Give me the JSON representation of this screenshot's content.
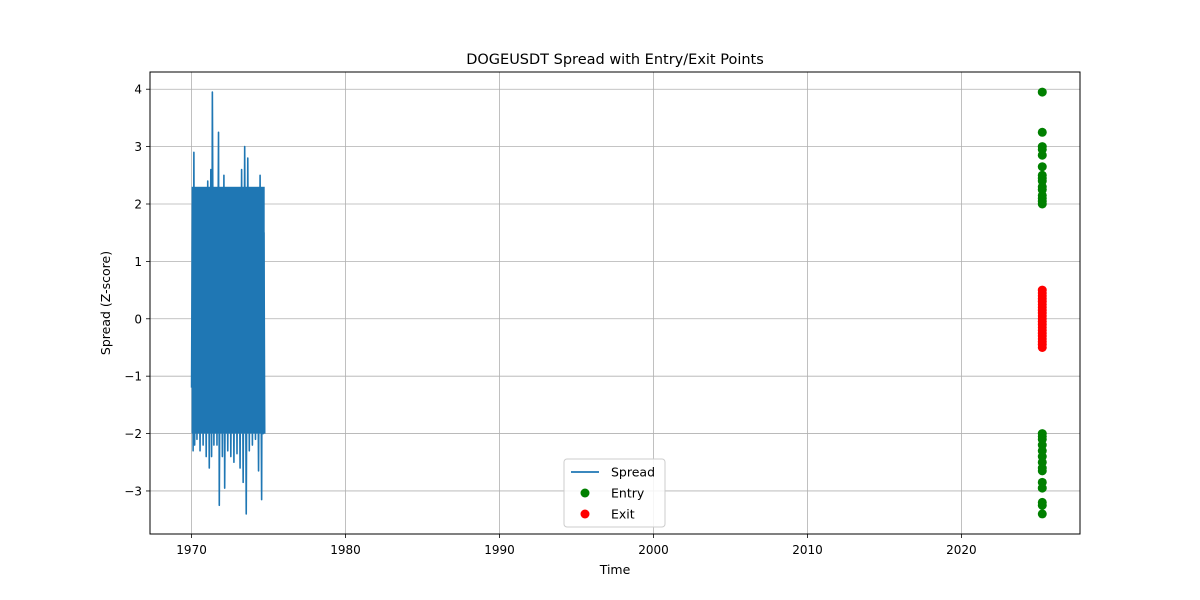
{
  "chart_data": {
    "type": "line",
    "title": "DOGEUSDT Spread with Entry/Exit Points",
    "xlabel": "Time",
    "ylabel": "Spread (Z-score)",
    "xlim": [
      1967.3,
      2027.7
    ],
    "ylim": [
      -3.75,
      4.3
    ],
    "x_ticks": [
      1970,
      1980,
      1990,
      2000,
      2010,
      2020
    ],
    "y_ticks": [
      4,
      3,
      2,
      1,
      0,
      -1,
      -2,
      -3
    ],
    "x_tick_labels": [
      "1970",
      "1980",
      "1990",
      "2000",
      "2010",
      "2020"
    ],
    "y_tick_labels": [
      "4",
      "3",
      "2",
      "1",
      "0",
      "−1",
      "−2",
      "−3"
    ],
    "grid": true,
    "legend_position": "lower center",
    "colors": {
      "spread": "#1f77b4",
      "entry": "#008000",
      "exit": "#ff0000",
      "grid": "#b0b0b0"
    },
    "series": [
      {
        "name": "Spread",
        "kind": "line",
        "x_range": [
          1970.0,
          1974.75
        ],
        "points": [
          [
            1970.0,
            -1.2
          ],
          [
            1970.05,
            2.0
          ],
          [
            1970.1,
            -2.3
          ],
          [
            1970.15,
            2.9
          ],
          [
            1970.2,
            -2.2
          ],
          [
            1970.28,
            1.6
          ],
          [
            1970.35,
            -2.1
          ],
          [
            1970.45,
            1.9
          ],
          [
            1970.55,
            -2.3
          ],
          [
            1970.65,
            1.7
          ],
          [
            1970.75,
            -2.2
          ],
          [
            1970.85,
            2.0
          ],
          [
            1970.95,
            -2.4
          ],
          [
            1971.05,
            2.4
          ],
          [
            1971.15,
            -2.6
          ],
          [
            1971.25,
            2.6
          ],
          [
            1971.3,
            -2.4
          ],
          [
            1971.35,
            3.95
          ],
          [
            1971.45,
            -2.2
          ],
          [
            1971.55,
            2.2
          ],
          [
            1971.65,
            -2.2
          ],
          [
            1971.75,
            3.25
          ],
          [
            1971.8,
            -3.25
          ],
          [
            1971.9,
            2.2
          ],
          [
            1972.0,
            -2.4
          ],
          [
            1972.1,
            2.5
          ],
          [
            1972.15,
            -2.95
          ],
          [
            1972.25,
            2.0
          ],
          [
            1972.35,
            -2.3
          ],
          [
            1972.45,
            2.2
          ],
          [
            1972.55,
            -2.4
          ],
          [
            1972.65,
            1.9
          ],
          [
            1972.75,
            -2.5
          ],
          [
            1972.85,
            2.1
          ],
          [
            1972.95,
            -2.35
          ],
          [
            1973.05,
            1.9
          ],
          [
            1973.15,
            -2.6
          ],
          [
            1973.25,
            2.6
          ],
          [
            1973.35,
            -2.85
          ],
          [
            1973.45,
            3.0
          ],
          [
            1973.55,
            -3.4
          ],
          [
            1973.65,
            2.8
          ],
          [
            1973.75,
            -2.3
          ],
          [
            1973.85,
            2.2
          ],
          [
            1973.95,
            -2.2
          ],
          [
            1974.05,
            1.9
          ],
          [
            1974.15,
            -2.1
          ],
          [
            1974.25,
            1.8
          ],
          [
            1974.35,
            -2.65
          ],
          [
            1974.45,
            2.5
          ],
          [
            1974.55,
            -3.15
          ],
          [
            1974.6,
            2.0
          ],
          [
            1974.65,
            -2.0
          ],
          [
            1974.7,
            1.5
          ],
          [
            1974.75,
            -2.0
          ]
        ]
      },
      {
        "name": "Entry",
        "kind": "scatter",
        "x": 2025.25,
        "y": [
          3.95,
          3.25,
          3.0,
          2.95,
          2.85,
          2.65,
          2.5,
          2.45,
          2.4,
          2.3,
          2.25,
          2.15,
          2.1,
          2.05,
          2.0,
          -2.0,
          -2.05,
          -2.1,
          -2.2,
          -2.3,
          -2.4,
          -2.5,
          -2.6,
          -2.65,
          -2.85,
          -2.95,
          -3.2,
          -3.25,
          -3.4
        ]
      },
      {
        "name": "Exit",
        "kind": "scatter",
        "x": 2025.25,
        "y": [
          0.5,
          0.45,
          0.4,
          0.35,
          0.3,
          0.25,
          0.2,
          0.15,
          0.1,
          0.05,
          0.0,
          -0.05,
          -0.1,
          -0.15,
          -0.2,
          -0.25,
          -0.3,
          -0.35,
          -0.4,
          -0.45,
          -0.5
        ]
      }
    ]
  }
}
